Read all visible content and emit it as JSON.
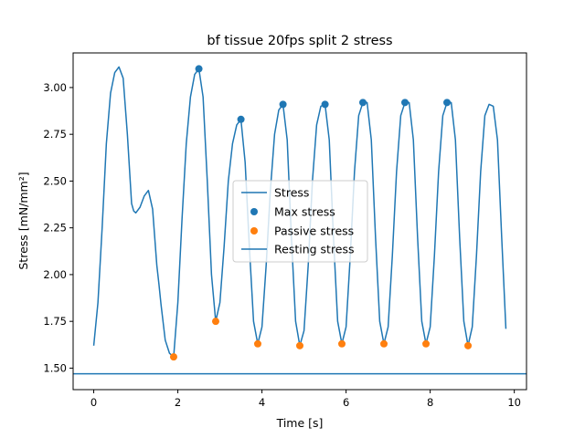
{
  "chart_data": {
    "type": "line",
    "title": "bf tissue 20fps split 2 stress",
    "xlabel": "Time [s]",
    "ylabel": "Stress [mN/mm²]",
    "xlim": [
      -0.49,
      10.29
    ],
    "ylim": [
      1.385,
      3.185
    ],
    "xticks": [
      0,
      2,
      4,
      6,
      8,
      10
    ],
    "xtick_labels": [
      "0",
      "2",
      "4",
      "6",
      "8",
      "10"
    ],
    "yticks": [
      1.5,
      1.75,
      2.0,
      2.25,
      2.5,
      2.75,
      3.0
    ],
    "ytick_labels": [
      "1.50",
      "1.75",
      "2.00",
      "2.25",
      "2.50",
      "2.75",
      "3.00"
    ],
    "grid": false,
    "legend_position": "center",
    "colors": {
      "blue": "#1f77b4",
      "orange": "#ff7f0e"
    },
    "stress": {
      "name": "Stress",
      "x": [
        0.0,
        0.1,
        0.2,
        0.3,
        0.4,
        0.5,
        0.6,
        0.7,
        0.8,
        0.9,
        0.95,
        1.0,
        1.1,
        1.2,
        1.3,
        1.4,
        1.5,
        1.55,
        1.6,
        1.7,
        1.8,
        1.9,
        2.0,
        2.1,
        2.2,
        2.3,
        2.4,
        2.5,
        2.6,
        2.7,
        2.8,
        2.9,
        3.0,
        3.1,
        3.2,
        3.3,
        3.4,
        3.5,
        3.6,
        3.7,
        3.8,
        3.9,
        4.0,
        4.1,
        4.2,
        4.3,
        4.4,
        4.5,
        4.6,
        4.7,
        4.8,
        4.9,
        5.0,
        5.1,
        5.2,
        5.3,
        5.4,
        5.5,
        5.6,
        5.7,
        5.8,
        5.9,
        6.0,
        6.1,
        6.2,
        6.3,
        6.4,
        6.5,
        6.6,
        6.7,
        6.8,
        6.9,
        7.0,
        7.1,
        7.2,
        7.3,
        7.4,
        7.5,
        7.6,
        7.7,
        7.8,
        7.9,
        8.0,
        8.1,
        8.2,
        8.3,
        8.4,
        8.5,
        8.6,
        8.7,
        8.8,
        8.9,
        9.0,
        9.1,
        9.2,
        9.3,
        9.4,
        9.5,
        9.6,
        9.7,
        9.8
      ],
      "y": [
        1.62,
        1.85,
        2.25,
        2.7,
        2.97,
        3.08,
        3.11,
        3.05,
        2.75,
        2.38,
        2.34,
        2.33,
        2.36,
        2.42,
        2.45,
        2.35,
        2.05,
        1.95,
        1.84,
        1.65,
        1.58,
        1.56,
        1.85,
        2.3,
        2.7,
        2.95,
        3.07,
        3.1,
        2.95,
        2.5,
        2.0,
        1.75,
        1.85,
        2.15,
        2.5,
        2.7,
        2.8,
        2.83,
        2.6,
        2.15,
        1.75,
        1.63,
        1.72,
        2.05,
        2.45,
        2.75,
        2.88,
        2.91,
        2.72,
        2.2,
        1.75,
        1.62,
        1.7,
        2.05,
        2.5,
        2.8,
        2.9,
        2.91,
        2.72,
        2.2,
        1.75,
        1.63,
        1.72,
        2.1,
        2.55,
        2.85,
        2.92,
        2.92,
        2.72,
        2.2,
        1.75,
        1.63,
        1.72,
        2.1,
        2.55,
        2.85,
        2.92,
        2.92,
        2.72,
        2.2,
        1.75,
        1.63,
        1.72,
        2.1,
        2.55,
        2.85,
        2.92,
        2.92,
        2.72,
        2.2,
        1.75,
        1.62,
        1.72,
        2.1,
        2.55,
        2.85,
        2.91,
        2.9,
        2.72,
        2.2,
        1.71
      ]
    },
    "max_stress": {
      "name": "Max stress",
      "x": [
        2.5,
        3.5,
        4.5,
        5.5,
        6.4,
        7.4,
        8.4
      ],
      "y": [
        3.1,
        2.83,
        2.91,
        2.91,
        2.92,
        2.92,
        2.92
      ]
    },
    "passive_stress": {
      "name": "Passive stress",
      "x": [
        1.9,
        2.9,
        3.9,
        4.9,
        5.9,
        6.9,
        7.9,
        8.9
      ],
      "y": [
        1.56,
        1.75,
        1.63,
        1.62,
        1.63,
        1.63,
        1.63,
        1.62
      ]
    },
    "resting_stress": {
      "name": "Resting stress",
      "y": 1.47
    }
  }
}
